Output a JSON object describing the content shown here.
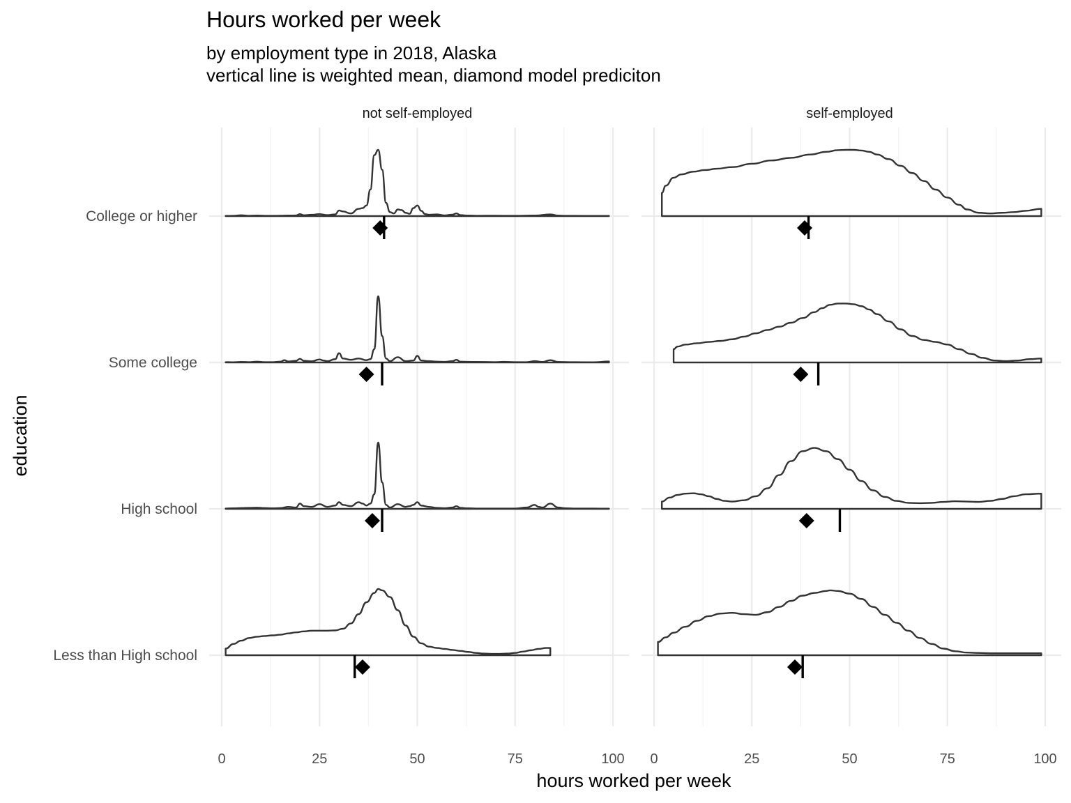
{
  "title": "Hours worked per week",
  "subtitle_lines": [
    "by employment type in 2018, Alaska",
    "vertical line is weighted mean, diamond model prediciton"
  ],
  "chart_data": {
    "type": "ridgeline-density",
    "xlabel": "hours worked per week",
    "ylabel": "education",
    "xlim": [
      0,
      100
    ],
    "x_ticks": [
      0,
      25,
      50,
      75,
      100
    ],
    "grid": true,
    "categories": [
      "College or higher",
      "Some college",
      "High school",
      "Less than High school"
    ],
    "facets": [
      {
        "label": "not self-employed",
        "rows": [
          {
            "education": "College or higher",
            "range": [
              1,
              99
            ],
            "weighted_mean": 41.5,
            "model_prediction": 40.5,
            "curve_x": [
              1,
              3,
              5,
              7,
              9,
              11,
              13,
              15,
              17,
              19,
              20,
              21,
              23,
              25,
              27,
              29,
              30,
              31,
              33,
              35,
              36,
              37,
              38,
              39,
              40,
              41,
              42,
              43,
              44,
              45,
              46,
              47,
              48,
              49,
              50,
              51,
              52,
              53,
              55,
              57,
              59,
              60,
              61,
              63,
              65,
              70,
              75,
              80,
              84,
              86,
              88,
              90,
              95,
              99
            ],
            "curve_y": [
              0.3,
              0.4,
              1.2,
              0.5,
              0.9,
              0.5,
              0.4,
              0.6,
              0.8,
              1.0,
              3.0,
              1.2,
              2.0,
              3.0,
              1.5,
              2.5,
              8.5,
              7.0,
              4.0,
              11,
              12,
              16,
              40,
              92,
              100,
              70,
              20,
              6,
              4,
              10,
              9,
              5,
              3.5,
              12,
              16,
              8,
              3,
              2,
              2.5,
              1,
              2.2,
              4,
              1.5,
              0.8,
              0.5,
              0.6,
              0.4,
              0.8,
              2.5,
              0.8,
              0.4,
              0.4,
              0.3,
              0.3
            ]
          },
          {
            "education": "Some college",
            "range": [
              1,
              99
            ],
            "weighted_mean": 41.0,
            "model_prediction": 37.0,
            "curve_x": [
              1,
              3,
              5,
              7,
              9,
              11,
              13,
              15,
              16,
              17,
              19,
              20,
              21,
              23,
              25,
              26,
              27,
              29,
              30,
              31,
              33,
              35,
              37,
              38,
              39,
              40,
              41,
              42,
              43,
              45,
              47,
              49,
              50,
              51,
              53,
              55,
              57,
              59,
              60,
              61,
              65,
              70,
              72,
              75,
              78,
              80,
              82,
              84,
              86,
              90,
              95,
              99
            ],
            "curve_y": [
              0.5,
              0.3,
              0.8,
              0.5,
              1.2,
              0.5,
              0.5,
              1.2,
              3.5,
              1.5,
              2.5,
              5.5,
              2.5,
              1.8,
              4.5,
              3,
              2,
              5,
              14,
              6,
              4,
              6,
              3.5,
              5,
              20,
              100,
              40,
              6,
              2,
              8,
              2,
              3,
              10,
              3,
              2,
              1.2,
              1,
              2,
              4,
              1.2,
              0.8,
              0.5,
              1,
              0.5,
              0.5,
              2,
              0.8,
              3.5,
              0.8,
              0.4,
              0.3,
              1.5
            ]
          },
          {
            "education": "High school",
            "range": [
              1,
              99
            ],
            "weighted_mean": 41.0,
            "model_prediction": 38.5,
            "curve_x": [
              1,
              3,
              5,
              7,
              9,
              11,
              13,
              15,
              17,
              19,
              20,
              21,
              23,
              25,
              27,
              29,
              30,
              31,
              33,
              35,
              36,
              37,
              38,
              39,
              40,
              41,
              42,
              43,
              45,
              47,
              48,
              49,
              50,
              51,
              53,
              55,
              57,
              59,
              60,
              61,
              63,
              65,
              70,
              75,
              78,
              80,
              81,
              82,
              84,
              86,
              88,
              90,
              95,
              99
            ],
            "curve_y": [
              0.5,
              0.8,
              1.2,
              1.5,
              1.8,
              1.2,
              0.8,
              1.2,
              3,
              2,
              8,
              4,
              3,
              7,
              3,
              5,
              10,
              6,
              4,
              10,
              8,
              5,
              8,
              22,
              100,
              40,
              6,
              2,
              7,
              3,
              4,
              6,
              10,
              5,
              3,
              1.5,
              1,
              2,
              4,
              1.5,
              0.8,
              0.5,
              0.4,
              0.5,
              2,
              6,
              3,
              2,
              8,
              2,
              0.8,
              0.5,
              0.4,
              0.3
            ]
          },
          {
            "education": "Less than High school",
            "range": [
              1,
              84
            ],
            "weighted_mean": 34.0,
            "model_prediction": 36.0,
            "curve_x": [
              1,
              3,
              5,
              7,
              9,
              11,
              13,
              15,
              17,
              19,
              21,
              23,
              25,
              27,
              29,
              31,
              33,
              35,
              37,
              39,
              40,
              41,
              43,
              45,
              47,
              49,
              51,
              53,
              55,
              57,
              59,
              61,
              63,
              65,
              67,
              69,
              71,
              73,
              75,
              77,
              79,
              81,
              83,
              84
            ],
            "curve_y": [
              10,
              17,
              22,
              26,
              28,
              29,
              30,
              31,
              33,
              34.5,
              36,
              37,
              37,
              37,
              37.5,
              40,
              48,
              62,
              80,
              94,
              100,
              98,
              88,
              68,
              45,
              28,
              18,
              13,
              11,
              9.5,
              8,
              6.5,
              5,
              3.5,
              2.5,
              2,
              2,
              2.5,
              3.5,
              5.5,
              7.5,
              9.5,
              11,
              11
            ]
          }
        ]
      },
      {
        "label": "self-employed",
        "rows": [
          {
            "education": "College or higher",
            "range": [
              2,
              99
            ],
            "weighted_mean": 39.5,
            "model_prediction": 38.5,
            "curve_x": [
              2,
              3,
              5,
              7,
              10,
              13,
              16,
              20,
              25,
              30,
              35,
              40,
              44,
              47,
              49,
              51,
              53,
              55,
              57,
              60,
              63,
              66,
              69,
              72,
              75,
              78,
              80,
              83,
              86,
              89,
              92,
              95,
              99
            ],
            "curve_y": [
              35,
              46,
              58,
              63,
              67,
              69.5,
              71.5,
              74,
              79,
              84,
              88,
              93,
              97,
              99.5,
              100,
              100,
              99,
              97,
              93,
              86,
              76,
              65,
              53,
              40,
              28,
              17,
              10,
              5,
              4,
              5,
              6,
              8,
              11
            ]
          },
          {
            "education": "Some college",
            "range": [
              5,
              99
            ],
            "weighted_mean": 42.0,
            "model_prediction": 37.5,
            "curve_x": [
              5,
              6,
              8,
              11,
              14,
              17,
              20,
              23,
              26,
              29,
              32,
              35,
              38,
              41,
              43,
              45,
              47,
              49,
              51,
              53,
              55,
              57,
              60,
              63,
              66,
              69,
              72,
              75,
              78,
              81,
              84,
              87,
              90,
              93,
              96,
              99
            ],
            "curve_y": [
              20,
              24,
              27,
              29,
              31,
              32.5,
              35,
              39,
              44,
              49,
              54,
              60,
              67,
              76,
              82,
              87,
              89,
              89,
              88,
              85,
              80,
              73,
              62,
              50,
              40,
              34,
              31,
              27,
              20,
              13,
              7,
              3,
              2,
              3,
              5,
              6
            ]
          },
          {
            "education": "High school",
            "range": [
              2,
              99
            ],
            "weighted_mean": 47.5,
            "model_prediction": 39.0,
            "curve_x": [
              2,
              4,
              6,
              8,
              10,
              12,
              14,
              16,
              18,
              20,
              23,
              26,
              29,
              32,
              35,
              38,
              41,
              44,
              47,
              50,
              53,
              56,
              59,
              62,
              65,
              68,
              71,
              74,
              77,
              80,
              83,
              86,
              89,
              92,
              95,
              99
            ],
            "curve_y": [
              11,
              17,
              21,
              23,
              23.5,
              22,
              19,
              15,
              12,
              11,
              13,
              19,
              31,
              51,
              72,
              87,
              92,
              87,
              75,
              59,
              42,
              28,
              18,
              12,
              9,
              8.5,
              9,
              10.5,
              11.5,
              11,
              10.5,
              12,
              15,
              19,
              22,
              23
            ]
          },
          {
            "education": "Less than High school",
            "range": [
              1,
              99
            ],
            "weighted_mean": 38.0,
            "model_prediction": 36.0,
            "curve_x": [
              1,
              3,
              5,
              8,
              11,
              14,
              17,
              20,
              23,
              26,
              29,
              32,
              35,
              38,
              41,
              44,
              45,
              47,
              50,
              53,
              56,
              59,
              62,
              65,
              68,
              71,
              74,
              77,
              80,
              83,
              86,
              89,
              92,
              95,
              99
            ],
            "curve_y": [
              20,
              27,
              34,
              43,
              52,
              59,
              63,
              64,
              62,
              61,
              65,
              73,
              82,
              90,
              94,
              97,
              98,
              97,
              93,
              85,
              73,
              61,
              49,
              37,
              26,
              17,
              10,
              6,
              4,
              3.5,
              3,
              3,
              3,
              3,
              3
            ]
          }
        ]
      }
    ]
  }
}
